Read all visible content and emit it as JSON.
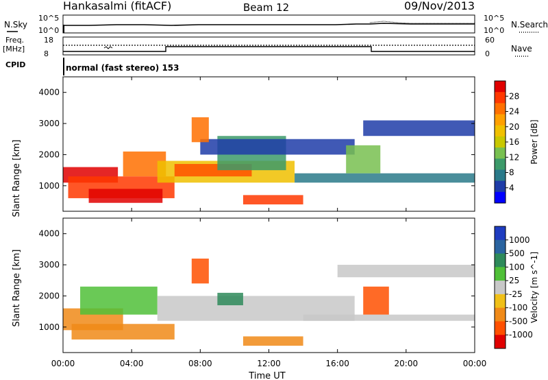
{
  "header": {
    "station": "Hankasalmi (fitACF)",
    "beam": "Beam 12",
    "date": "09/Nov/2013"
  },
  "top_panels": {
    "nsky_label": "N.Sky",
    "nsearch_label": "N.Search",
    "noise_ticks_left": [
      "10^5",
      "10^0"
    ],
    "noise_ticks_right": [
      "10^5",
      "10^0"
    ],
    "freq_label": "Freq.",
    "freq_unit": "[MHz]",
    "freq_ticks": [
      "18",
      "8"
    ],
    "nave_label": "Nave",
    "nave_ticks": [
      "60",
      "0"
    ],
    "cpid_label": "CPID",
    "cpid_text": "normal (fast stereo) 153"
  },
  "axes": {
    "y_label": "Slant Range [km]",
    "y_ticks": [
      "4000",
      "3000",
      "2000",
      "1000"
    ],
    "x_label": "Time UT",
    "x_ticks": [
      "00:00",
      "04:00",
      "08:00",
      "12:00",
      "16:00",
      "20:00",
      "00:00"
    ]
  },
  "colorbars": {
    "power": {
      "label": "Power [dB]",
      "ticks": [
        "28",
        "24",
        "20",
        "16",
        "12",
        "8",
        "4"
      ],
      "colors": [
        "#e00000",
        "#ff3800",
        "#ff7000",
        "#ffa000",
        "#f0c000",
        "#c8c800",
        "#78c050",
        "#3c9a6a",
        "#2a7a8a",
        "#1e3ca8",
        "#0000ff"
      ]
    },
    "velocity": {
      "label": "Velocity [m s^-1]",
      "ticks": [
        "1000",
        "500",
        "100",
        "25",
        "-25",
        "-100",
        "-500",
        "-1000"
      ],
      "colors": [
        "#1e3cc0",
        "#2a64a0",
        "#2e8a5a",
        "#50c038",
        "#c8c8c8",
        "#f0c018",
        "#f08a18",
        "#ff5000",
        "#e00000"
      ]
    }
  },
  "chart_data": [
    {
      "type": "heatmap",
      "name": "power",
      "x_range": [
        "00:00",
        "24:00"
      ],
      "y_range_km": [
        180,
        4500
      ],
      "bands": [
        {
          "t0": 0.0,
          "t1": 3.2,
          "r0": 1100,
          "r1": 1600,
          "color": "#e00000"
        },
        {
          "t0": 0.3,
          "t1": 6.5,
          "r0": 600,
          "r1": 1300,
          "color": "#ff3800"
        },
        {
          "t0": 1.5,
          "t1": 5.8,
          "r0": 450,
          "r1": 900,
          "color": "#e00000"
        },
        {
          "t0": 3.5,
          "t1": 6.0,
          "r0": 1300,
          "r1": 2100,
          "color": "#ff7000"
        },
        {
          "t0": 5.5,
          "t1": 13.5,
          "r0": 1100,
          "r1": 1800,
          "color": "#f0c000"
        },
        {
          "t0": 6.5,
          "t1": 11.0,
          "r0": 1300,
          "r1": 1700,
          "color": "#ff5000"
        },
        {
          "t0": 9.0,
          "t1": 13.0,
          "r0": 1500,
          "r1": 2600,
          "color": "#3c9a6a"
        },
        {
          "t0": 10.5,
          "t1": 14.0,
          "r0": 400,
          "r1": 700,
          "color": "#ff3800"
        },
        {
          "t0": 8.0,
          "t1": 17.0,
          "r0": 2000,
          "r1": 2500,
          "color": "#1e3ca8"
        },
        {
          "t0": 13.5,
          "t1": 24.0,
          "r0": 1100,
          "r1": 1400,
          "color": "#2a7a8a"
        },
        {
          "t0": 17.5,
          "t1": 24.0,
          "r0": 2600,
          "r1": 3100,
          "color": "#1e3ca8"
        },
        {
          "t0": 7.5,
          "t1": 8.5,
          "r0": 2400,
          "r1": 3200,
          "color": "#ff7000"
        },
        {
          "t0": 16.5,
          "t1": 18.5,
          "r0": 1400,
          "r1": 2300,
          "color": "#78c050"
        }
      ]
    },
    {
      "type": "heatmap",
      "name": "velocity",
      "x_range": [
        "00:00",
        "24:00"
      ],
      "y_range_km": [
        180,
        4500
      ],
      "bands": [
        {
          "t0": 0.0,
          "t1": 3.5,
          "r0": 900,
          "r1": 1600,
          "color": "#f08a18"
        },
        {
          "t0": 0.5,
          "t1": 6.5,
          "r0": 600,
          "r1": 1100,
          "color": "#f08a18"
        },
        {
          "t0": 1.0,
          "t1": 5.5,
          "r0": 1400,
          "r1": 2300,
          "color": "#50c038"
        },
        {
          "t0": 5.5,
          "t1": 17.0,
          "r0": 1200,
          "r1": 2000,
          "color": "#c8c8c8"
        },
        {
          "t0": 10.5,
          "t1": 14.0,
          "r0": 400,
          "r1": 700,
          "color": "#f08a18"
        },
        {
          "t0": 14.0,
          "t1": 24.0,
          "r0": 1200,
          "r1": 1400,
          "color": "#c8c8c8"
        },
        {
          "t0": 16.0,
          "t1": 24.0,
          "r0": 2600,
          "r1": 3000,
          "color": "#c8c8c8"
        },
        {
          "t0": 7.5,
          "t1": 8.5,
          "r0": 2400,
          "r1": 3200,
          "color": "#ff5000"
        },
        {
          "t0": 17.5,
          "t1": 19.0,
          "r0": 1400,
          "r1": 2300,
          "color": "#ff5000"
        },
        {
          "t0": 9.0,
          "t1": 10.5,
          "r0": 1700,
          "r1": 2100,
          "color": "#2e8a5a"
        }
      ]
    }
  ]
}
